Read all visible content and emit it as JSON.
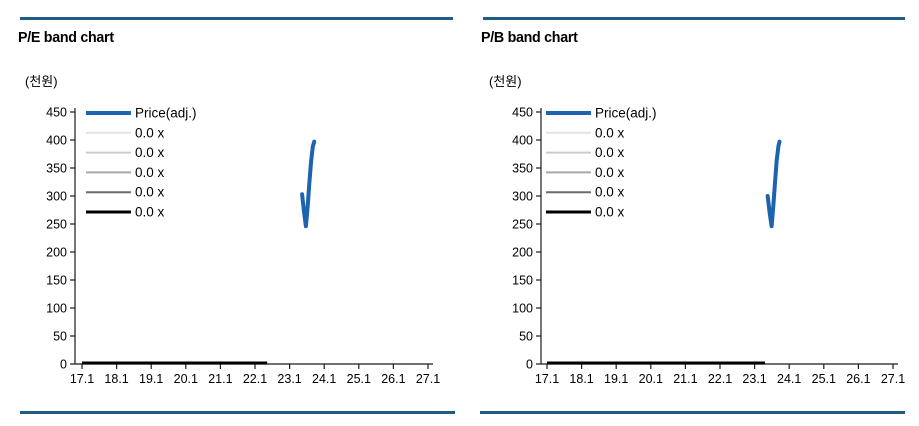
{
  "colors": {
    "rule": "#1e5c87",
    "price": "#1c63b0",
    "axis": "#1a1a1a",
    "text": "#000000",
    "band_shades": [
      "#e4e4e4",
      "#cbcbcb",
      "#a6a6a6",
      "#6a6a6a",
      "#000000"
    ]
  },
  "charts": [
    {
      "chart_data": {
        "type": "line",
        "title": "P/E band chart",
        "ylabel": "(천원)",
        "xlabel": "",
        "ylim": [
          0,
          450
        ],
        "y_tick_step": 50,
        "y_ticks": [
          0,
          50,
          100,
          150,
          200,
          250,
          300,
          350,
          400,
          450
        ],
        "x_ticks": [
          "17.1",
          "18.1",
          "19.1",
          "20.1",
          "21.1",
          "22.1",
          "23.1",
          "24.1",
          "25.1",
          "26.1",
          "27.1"
        ],
        "grid": false,
        "legend_position": "upper-left-inside",
        "series": [
          {
            "name": "Price(adj.)",
            "role": "price",
            "color": "#1c63b0",
            "stroke_width": 4,
            "points": [
              [
                6.36,
                303
              ],
              [
                6.41,
                275
              ],
              [
                6.47,
                246
              ],
              [
                6.52,
                280
              ],
              [
                6.57,
                322
              ],
              [
                6.62,
                362
              ],
              [
                6.67,
                388
              ],
              [
                6.71,
                397
              ]
            ]
          },
          {
            "name": "0.0 x",
            "role": "band",
            "color": "#e4e4e4",
            "stroke_width": 2,
            "points": [
              [
                0,
                0
              ],
              [
                5.35,
                0
              ]
            ]
          },
          {
            "name": "0.0 x",
            "role": "band",
            "color": "#cbcbcb",
            "stroke_width": 2,
            "points": [
              [
                0,
                0
              ],
              [
                5.35,
                0
              ]
            ]
          },
          {
            "name": "0.0 x",
            "role": "band",
            "color": "#a6a6a6",
            "stroke_width": 2,
            "points": [
              [
                0,
                0
              ],
              [
                5.35,
                0
              ]
            ]
          },
          {
            "name": "0.0 x",
            "role": "band",
            "color": "#6a6a6a",
            "stroke_width": 2,
            "points": [
              [
                0,
                0
              ],
              [
                5.35,
                0
              ]
            ]
          },
          {
            "name": "0.0 x",
            "role": "band",
            "color": "#000000",
            "stroke_width": 3,
            "points": [
              [
                0,
                0
              ],
              [
                5.35,
                0
              ]
            ]
          }
        ]
      }
    },
    {
      "chart_data": {
        "type": "line",
        "title": "P/B band chart",
        "ylabel": "(천원)",
        "xlabel": "",
        "ylim": [
          0,
          450
        ],
        "y_tick_step": 50,
        "y_ticks": [
          0,
          50,
          100,
          150,
          200,
          250,
          300,
          350,
          400,
          450
        ],
        "x_ticks": [
          "17.1",
          "18.1",
          "19.1",
          "20.1",
          "21.1",
          "22.1",
          "23.1",
          "24.1",
          "25.1",
          "26.1",
          "27.1"
        ],
        "grid": false,
        "legend_position": "upper-left-inside",
        "series": [
          {
            "name": "Price(adj.)",
            "role": "price",
            "color": "#1c63b0",
            "stroke_width": 4,
            "points": [
              [
                6.38,
                300
              ],
              [
                6.43,
                272
              ],
              [
                6.49,
                246
              ],
              [
                6.54,
                282
              ],
              [
                6.59,
                324
              ],
              [
                6.64,
                364
              ],
              [
                6.69,
                390
              ],
              [
                6.72,
                397
              ]
            ]
          },
          {
            "name": "0.0 x",
            "role": "band",
            "color": "#e4e4e4",
            "stroke_width": 2,
            "points": [
              [
                0,
                0
              ],
              [
                6.3,
                0
              ]
            ]
          },
          {
            "name": "0.0 x",
            "role": "band",
            "color": "#cbcbcb",
            "stroke_width": 2,
            "points": [
              [
                0,
                0
              ],
              [
                6.3,
                0
              ]
            ]
          },
          {
            "name": "0.0 x",
            "role": "band",
            "color": "#a6a6a6",
            "stroke_width": 2,
            "points": [
              [
                0,
                0
              ],
              [
                6.3,
                0
              ]
            ]
          },
          {
            "name": "0.0 x",
            "role": "band",
            "color": "#6a6a6a",
            "stroke_width": 2,
            "points": [
              [
                0,
                0
              ],
              [
                6.3,
                0
              ]
            ]
          },
          {
            "name": "0.0 x",
            "role": "band",
            "color": "#000000",
            "stroke_width": 3,
            "points": [
              [
                0,
                0
              ],
              [
                6.3,
                0
              ]
            ]
          }
        ]
      }
    }
  ]
}
